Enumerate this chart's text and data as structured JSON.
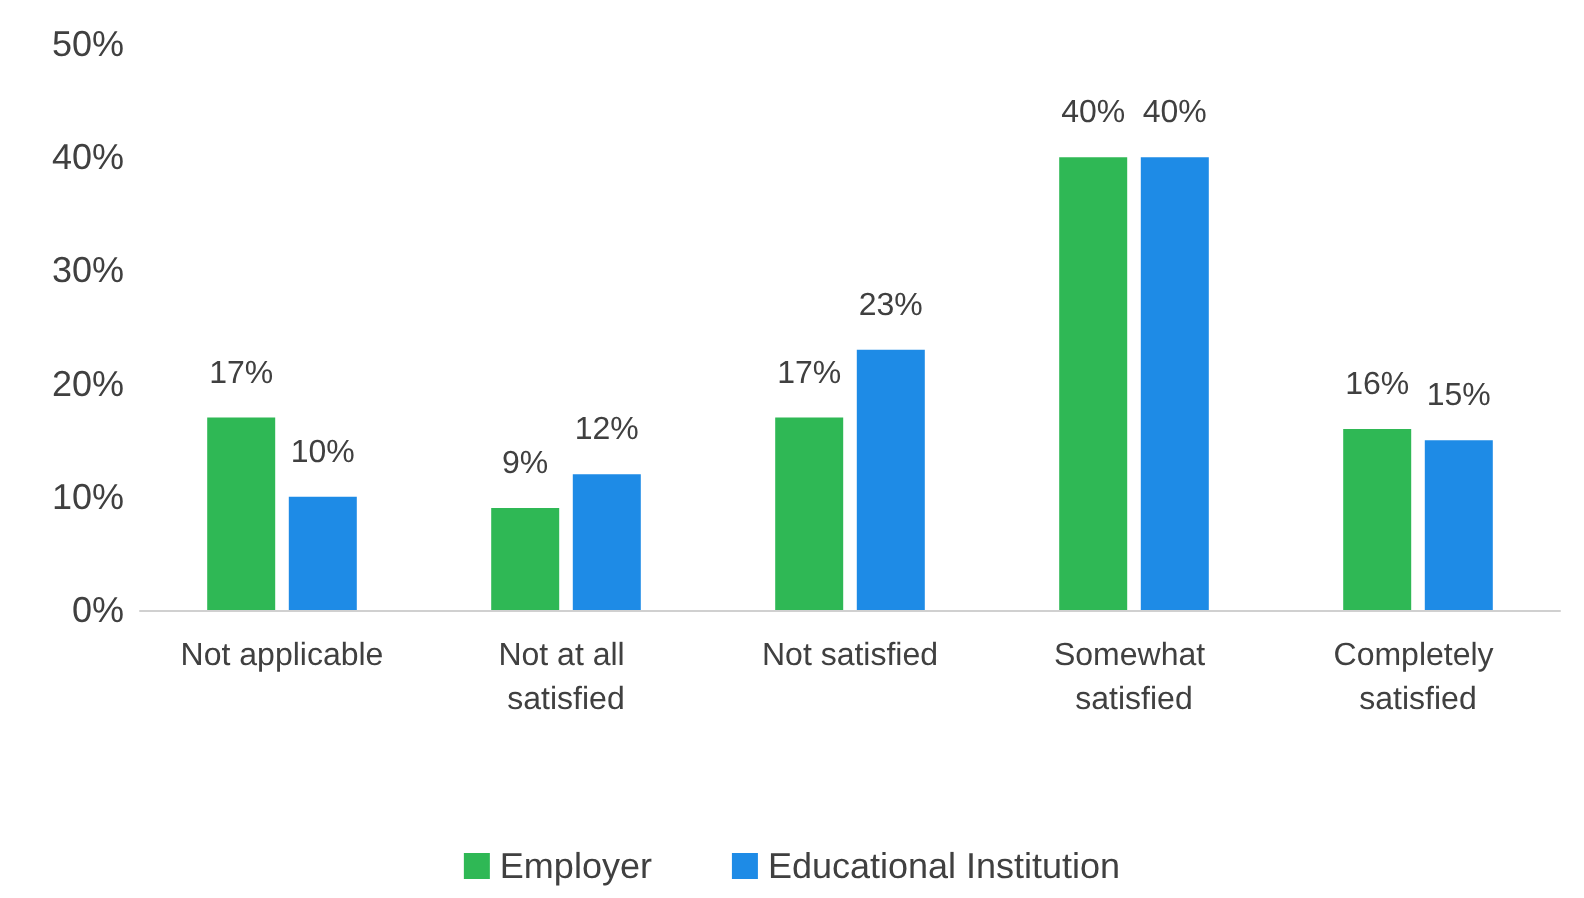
{
  "chart_data": {
    "type": "bar",
    "categories": [
      "Not applicable",
      "Not at all satisfied",
      "Not satisfied",
      "Somewhat satisfied",
      "Completely satisfied"
    ],
    "series": [
      {
        "name": "Employer",
        "color": "#2fb855",
        "values": [
          17,
          9,
          17,
          40,
          16
        ],
        "value_labels": [
          "17%",
          "9%",
          "17%",
          "40%",
          "16%"
        ]
      },
      {
        "name": "Educational Institution",
        "color": "#1e8be6",
        "values": [
          10,
          12,
          23,
          40,
          15
        ],
        "value_labels": [
          "10%",
          "12%",
          "23%",
          "40%",
          "15%"
        ]
      }
    ],
    "ylim": [
      0,
      50
    ],
    "yticks": [
      {
        "value": 0,
        "label": "0%"
      },
      {
        "value": 10,
        "label": "10%"
      },
      {
        "value": 20,
        "label": "20%"
      },
      {
        "value": 30,
        "label": "30%"
      },
      {
        "value": 40,
        "label": "40%"
      },
      {
        "value": 50,
        "label": "50%"
      }
    ],
    "grid": false,
    "legend": "bottom"
  }
}
